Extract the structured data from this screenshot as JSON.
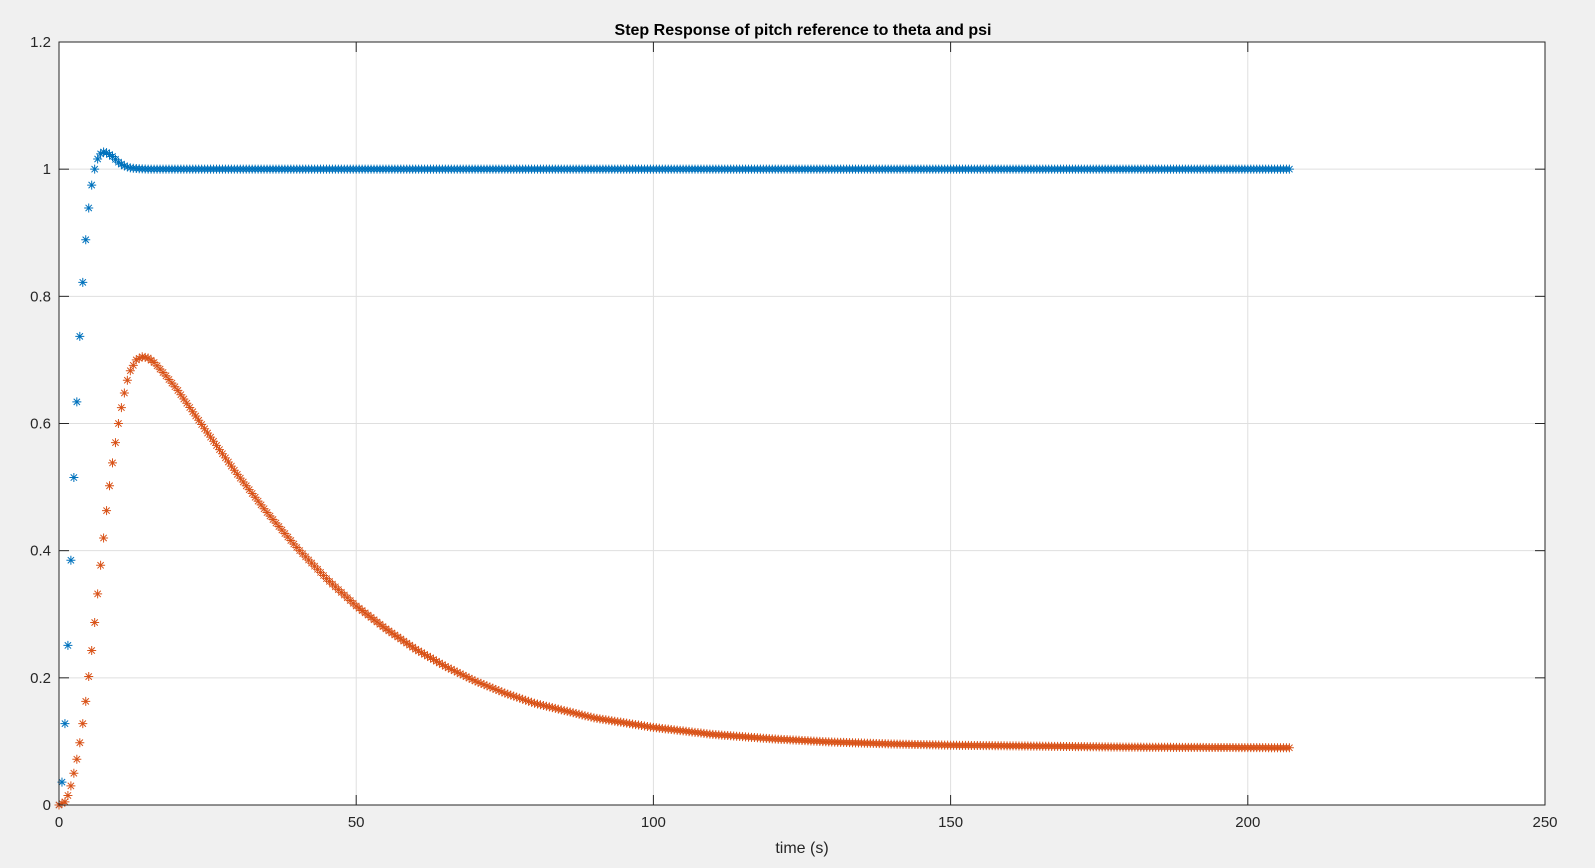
{
  "colors": {
    "figure_bg": "#f0f0f0",
    "axes_bg": "#ffffff",
    "grid": "#dfdfdf",
    "axis": "#262626"
  },
  "chart_data": {
    "type": "scatter",
    "title": "Step Response of pitch reference to theta and psi",
    "xlabel": "time (s)",
    "ylabel": "",
    "xlim": [
      0,
      250
    ],
    "ylim": [
      0,
      1.2
    ],
    "xticks": [
      0,
      50,
      100,
      150,
      200,
      250
    ],
    "xtick_labels": [
      "0",
      "50",
      "100",
      "150",
      "200",
      "250"
    ],
    "yticks": [
      0,
      0.2,
      0.4,
      0.6,
      0.8,
      1,
      1.2
    ],
    "ytick_labels": [
      "0",
      "0.2",
      "0.4",
      "0.6",
      "0.8",
      "1",
      "1.2"
    ],
    "grid": true,
    "marker": "asterisk",
    "sample_step": 0.5,
    "x_end": 207,
    "series": [
      {
        "color": "#0072bd",
        "keypoints": [
          [
            0,
            0
          ],
          [
            0.5,
            0.036
          ],
          [
            1,
            0.128
          ],
          [
            1.5,
            0.251
          ],
          [
            2,
            0.385
          ],
          [
            2.5,
            0.515
          ],
          [
            3,
            0.634
          ],
          [
            3.5,
            0.737
          ],
          [
            4,
            0.822
          ],
          [
            4.5,
            0.889
          ],
          [
            5,
            0.939
          ],
          [
            5.5,
            0.975
          ],
          [
            6,
            1.0
          ],
          [
            6.5,
            1.016
          ],
          [
            7,
            1.024
          ],
          [
            7.5,
            1.027
          ],
          [
            8,
            1.026
          ],
          [
            9,
            1.02
          ],
          [
            10,
            1.011
          ],
          [
            11,
            1.005
          ],
          [
            12,
            1.002
          ],
          [
            13,
            1.001
          ],
          [
            15,
            1.0
          ],
          [
            207,
            1.0
          ]
        ]
      },
      {
        "color": "#d95319",
        "keypoints": [
          [
            0,
            0
          ],
          [
            1,
            0.005
          ],
          [
            1.5,
            0.015
          ],
          [
            2,
            0.03
          ],
          [
            2.5,
            0.05
          ],
          [
            3,
            0.072
          ],
          [
            3.5,
            0.098
          ],
          [
            4,
            0.128
          ],
          [
            4.5,
            0.163
          ],
          [
            5,
            0.202
          ],
          [
            5.5,
            0.243
          ],
          [
            6,
            0.287
          ],
          [
            6.5,
            0.332
          ],
          [
            7,
            0.377
          ],
          [
            7.5,
            0.42
          ],
          [
            8,
            0.463
          ],
          [
            8.5,
            0.502
          ],
          [
            9,
            0.538
          ],
          [
            9.5,
            0.57
          ],
          [
            10,
            0.6
          ],
          [
            10.5,
            0.625
          ],
          [
            11,
            0.648
          ],
          [
            11.5,
            0.668
          ],
          [
            12,
            0.683
          ],
          [
            13,
            0.7
          ],
          [
            14,
            0.705
          ],
          [
            15,
            0.703
          ],
          [
            16,
            0.696
          ],
          [
            18,
            0.675
          ],
          [
            20,
            0.652
          ],
          [
            25,
            0.585
          ],
          [
            30,
            0.52
          ],
          [
            35,
            0.46
          ],
          [
            40,
            0.405
          ],
          [
            45,
            0.356
          ],
          [
            50,
            0.313
          ],
          [
            55,
            0.277
          ],
          [
            60,
            0.245
          ],
          [
            65,
            0.218
          ],
          [
            70,
            0.195
          ],
          [
            75,
            0.176
          ],
          [
            80,
            0.16
          ],
          [
            90,
            0.137
          ],
          [
            100,
            0.122
          ],
          [
            110,
            0.111
          ],
          [
            120,
            0.104
          ],
          [
            130,
            0.099
          ],
          [
            140,
            0.096
          ],
          [
            150,
            0.094
          ],
          [
            160,
            0.093
          ],
          [
            180,
            0.091
          ],
          [
            207,
            0.09
          ]
        ]
      }
    ]
  }
}
